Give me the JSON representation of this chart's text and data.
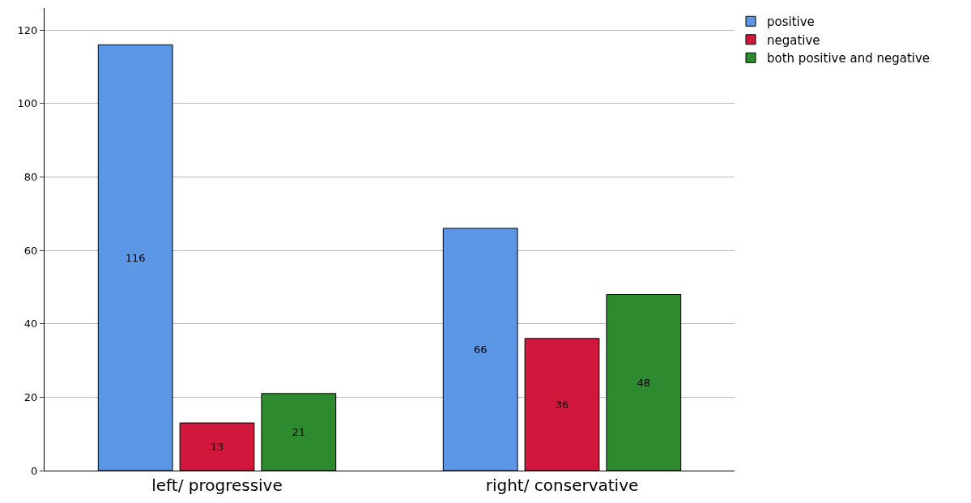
{
  "chart_data": {
    "type": "bar",
    "categories": [
      "left/ progressive",
      "right/ conservative"
    ],
    "series": [
      {
        "name": "positive",
        "color": "#5b97e4",
        "values": [
          116,
          66
        ]
      },
      {
        "name": "negative",
        "color": "#d2173c",
        "values": [
          13,
          36
        ]
      },
      {
        "name": "both positive and negative",
        "color": "#2e8a2e",
        "values": [
          21,
          48
        ]
      }
    ],
    "ylim": [
      0,
      126
    ],
    "yticks": [
      0,
      20,
      40,
      60,
      80,
      100,
      120
    ],
    "grid": "y",
    "legend": "top right",
    "data_labels": true
  }
}
